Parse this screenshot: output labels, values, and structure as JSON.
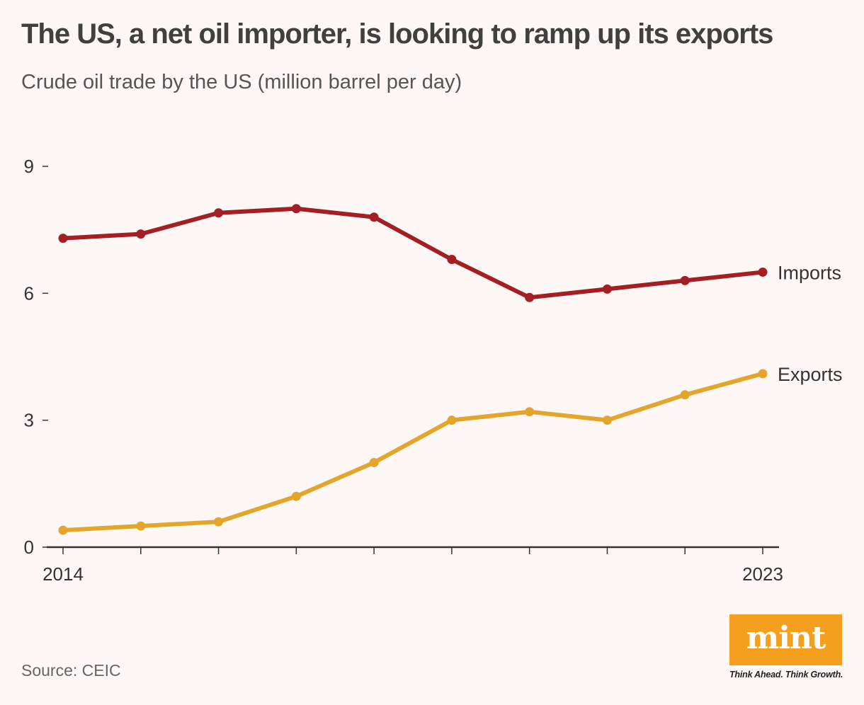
{
  "header": {
    "title": "The US, a net oil importer, is looking to ramp up its exports",
    "subtitle": "Crude oil trade by the US (million barrel per day)"
  },
  "chart_data": {
    "type": "line",
    "title": "The US, a net oil importer, is looking to ramp up its exports",
    "subtitle": "Crude oil trade by the US (million barrel per day)",
    "xlabel": "",
    "ylabel": "",
    "x": [
      2014,
      2015,
      2016,
      2017,
      2018,
      2019,
      2020,
      2021,
      2022,
      2023
    ],
    "x_tick_labels": [
      "2014",
      "2023"
    ],
    "y_ticks": [
      0,
      3,
      6,
      9
    ],
    "ylim": [
      0,
      9
    ],
    "grid": false,
    "legend": "none (series labeled at line ends)",
    "series": [
      {
        "name": "Imports",
        "color": "#a31f24",
        "values": [
          7.3,
          7.4,
          7.9,
          8.0,
          7.8,
          6.8,
          5.9,
          6.1,
          6.3,
          6.5
        ]
      },
      {
        "name": "Exports",
        "color": "#e3a52c",
        "values": [
          0.4,
          0.5,
          0.6,
          1.2,
          2.0,
          3.0,
          3.2,
          3.0,
          3.6,
          4.1
        ]
      }
    ]
  },
  "footer": {
    "source": "Source: CEIC"
  },
  "logo": {
    "wordmark": "mint",
    "tagline": "Think Ahead. Think Growth.",
    "color": "#f59f1f"
  }
}
